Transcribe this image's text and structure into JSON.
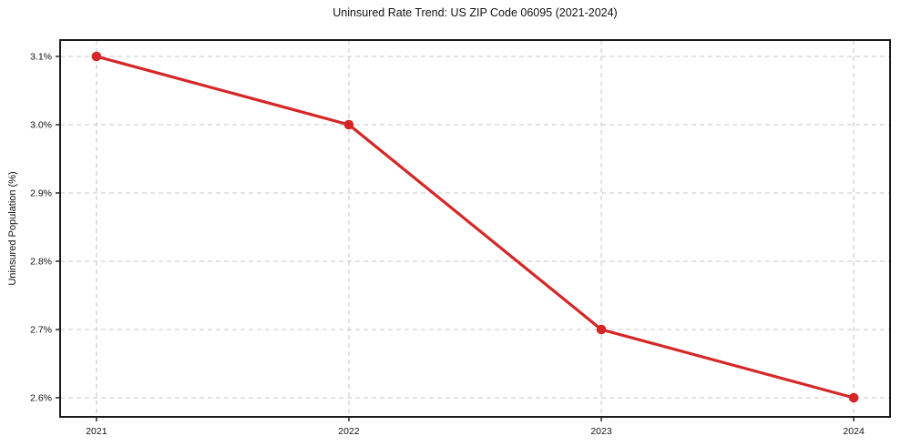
{
  "title": "Uninsured Rate Trend: US ZIP Code 06095 (2021-2024)",
  "chart_data": {
    "type": "line",
    "title": "Uninsured Rate Trend: US ZIP Code 06095 (2021-2024)",
    "xlabel": "",
    "ylabel": "Uninsured Population (%)",
    "x": [
      2021,
      2022,
      2023,
      2024
    ],
    "series": [
      {
        "name": "uninsured-rate",
        "values": [
          3.1,
          3.0,
          2.7,
          2.6
        ],
        "color": "#d62728",
        "marker": "circle",
        "line_width": 3.2,
        "marker_radius": 5.3
      }
    ],
    "xticks": [
      {
        "value": 2021,
        "label": "2021"
      },
      {
        "value": 2022,
        "label": "2022"
      },
      {
        "value": 2023,
        "label": "2023"
      },
      {
        "value": 2024,
        "label": "2024"
      }
    ],
    "yticks": [
      {
        "value": 2.6,
        "label": "2.6%"
      },
      {
        "value": 2.7,
        "label": "2.7%"
      },
      {
        "value": 2.8,
        "label": "2.8%"
      },
      {
        "value": 2.9,
        "label": "2.9%"
      },
      {
        "value": 3.0,
        "label": "3.0%"
      },
      {
        "value": 3.1,
        "label": "3.1%"
      }
    ],
    "xlim": [
      2020.856,
      2024.144
    ],
    "ylim": [
      2.572,
      3.124
    ],
    "grid": "dashed",
    "grid_color": "#c9c9c9",
    "spine_color": "#1a1a1a",
    "background": "#ffffff",
    "legend": "none"
  }
}
